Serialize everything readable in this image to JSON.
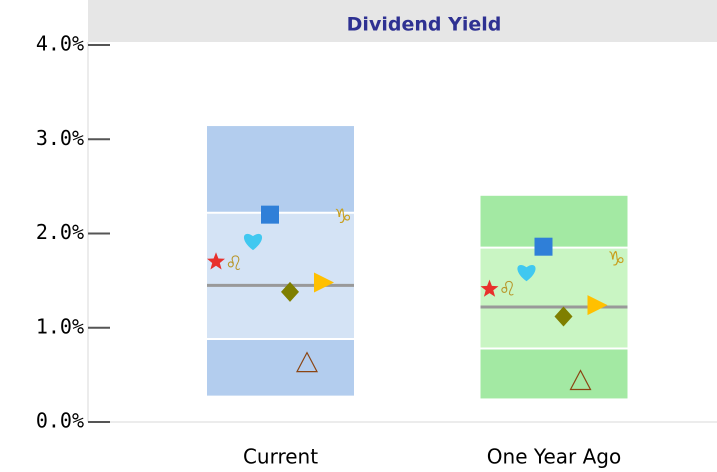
{
  "chart_data": {
    "type": "range",
    "title": "Dividend Yield",
    "categories": [
      "Current",
      "One Year Ago"
    ],
    "high": [
      3.14,
      2.4
    ],
    "upper": [
      2.22,
      1.85
    ],
    "median": [
      1.45,
      1.22
    ],
    "lower": [
      0.88,
      0.78
    ],
    "low": [
      0.28,
      0.25
    ],
    "outer_colors": [
      "#b3cdee",
      "#a3e9a3"
    ],
    "inner_colors": [
      "#d4e3f5",
      "#c9f5c3"
    ],
    "median_color": "#999999",
    "ylim": [
      0,
      4
    ],
    "yticks": [
      {
        "value": 0,
        "label": "0.0%"
      },
      {
        "value": 1,
        "label": "1.0%"
      },
      {
        "value": 2,
        "label": "2.0%"
      },
      {
        "value": 3,
        "label": "3.0%"
      },
      {
        "value": 4,
        "label": "4.0%"
      }
    ],
    "series": [
      {
        "symbol": "star",
        "color": "#e8302c",
        "values": [
          1.7,
          1.41
        ]
      },
      {
        "symbol": "leo",
        "color": "#b8962a",
        "values": [
          1.68,
          1.41
        ]
      },
      {
        "symbol": "heart",
        "color": "#40c8f0",
        "values": [
          1.93,
          1.6
        ]
      },
      {
        "symbol": "square",
        "color": "#2f7fd8",
        "values": [
          2.2,
          1.86
        ]
      },
      {
        "symbol": "diamond",
        "color": "#7f7f00",
        "values": [
          1.38,
          1.12
        ]
      },
      {
        "symbol": "triangle-right",
        "color": "#ffc000",
        "values": [
          1.48,
          1.24
        ]
      },
      {
        "symbol": "triangle-up-open",
        "color": "#8b4513",
        "values": [
          0.63,
          0.44
        ]
      },
      {
        "symbol": "capricorn",
        "color": "#c8a020",
        "values": [
          2.18,
          1.73
        ]
      }
    ]
  }
}
